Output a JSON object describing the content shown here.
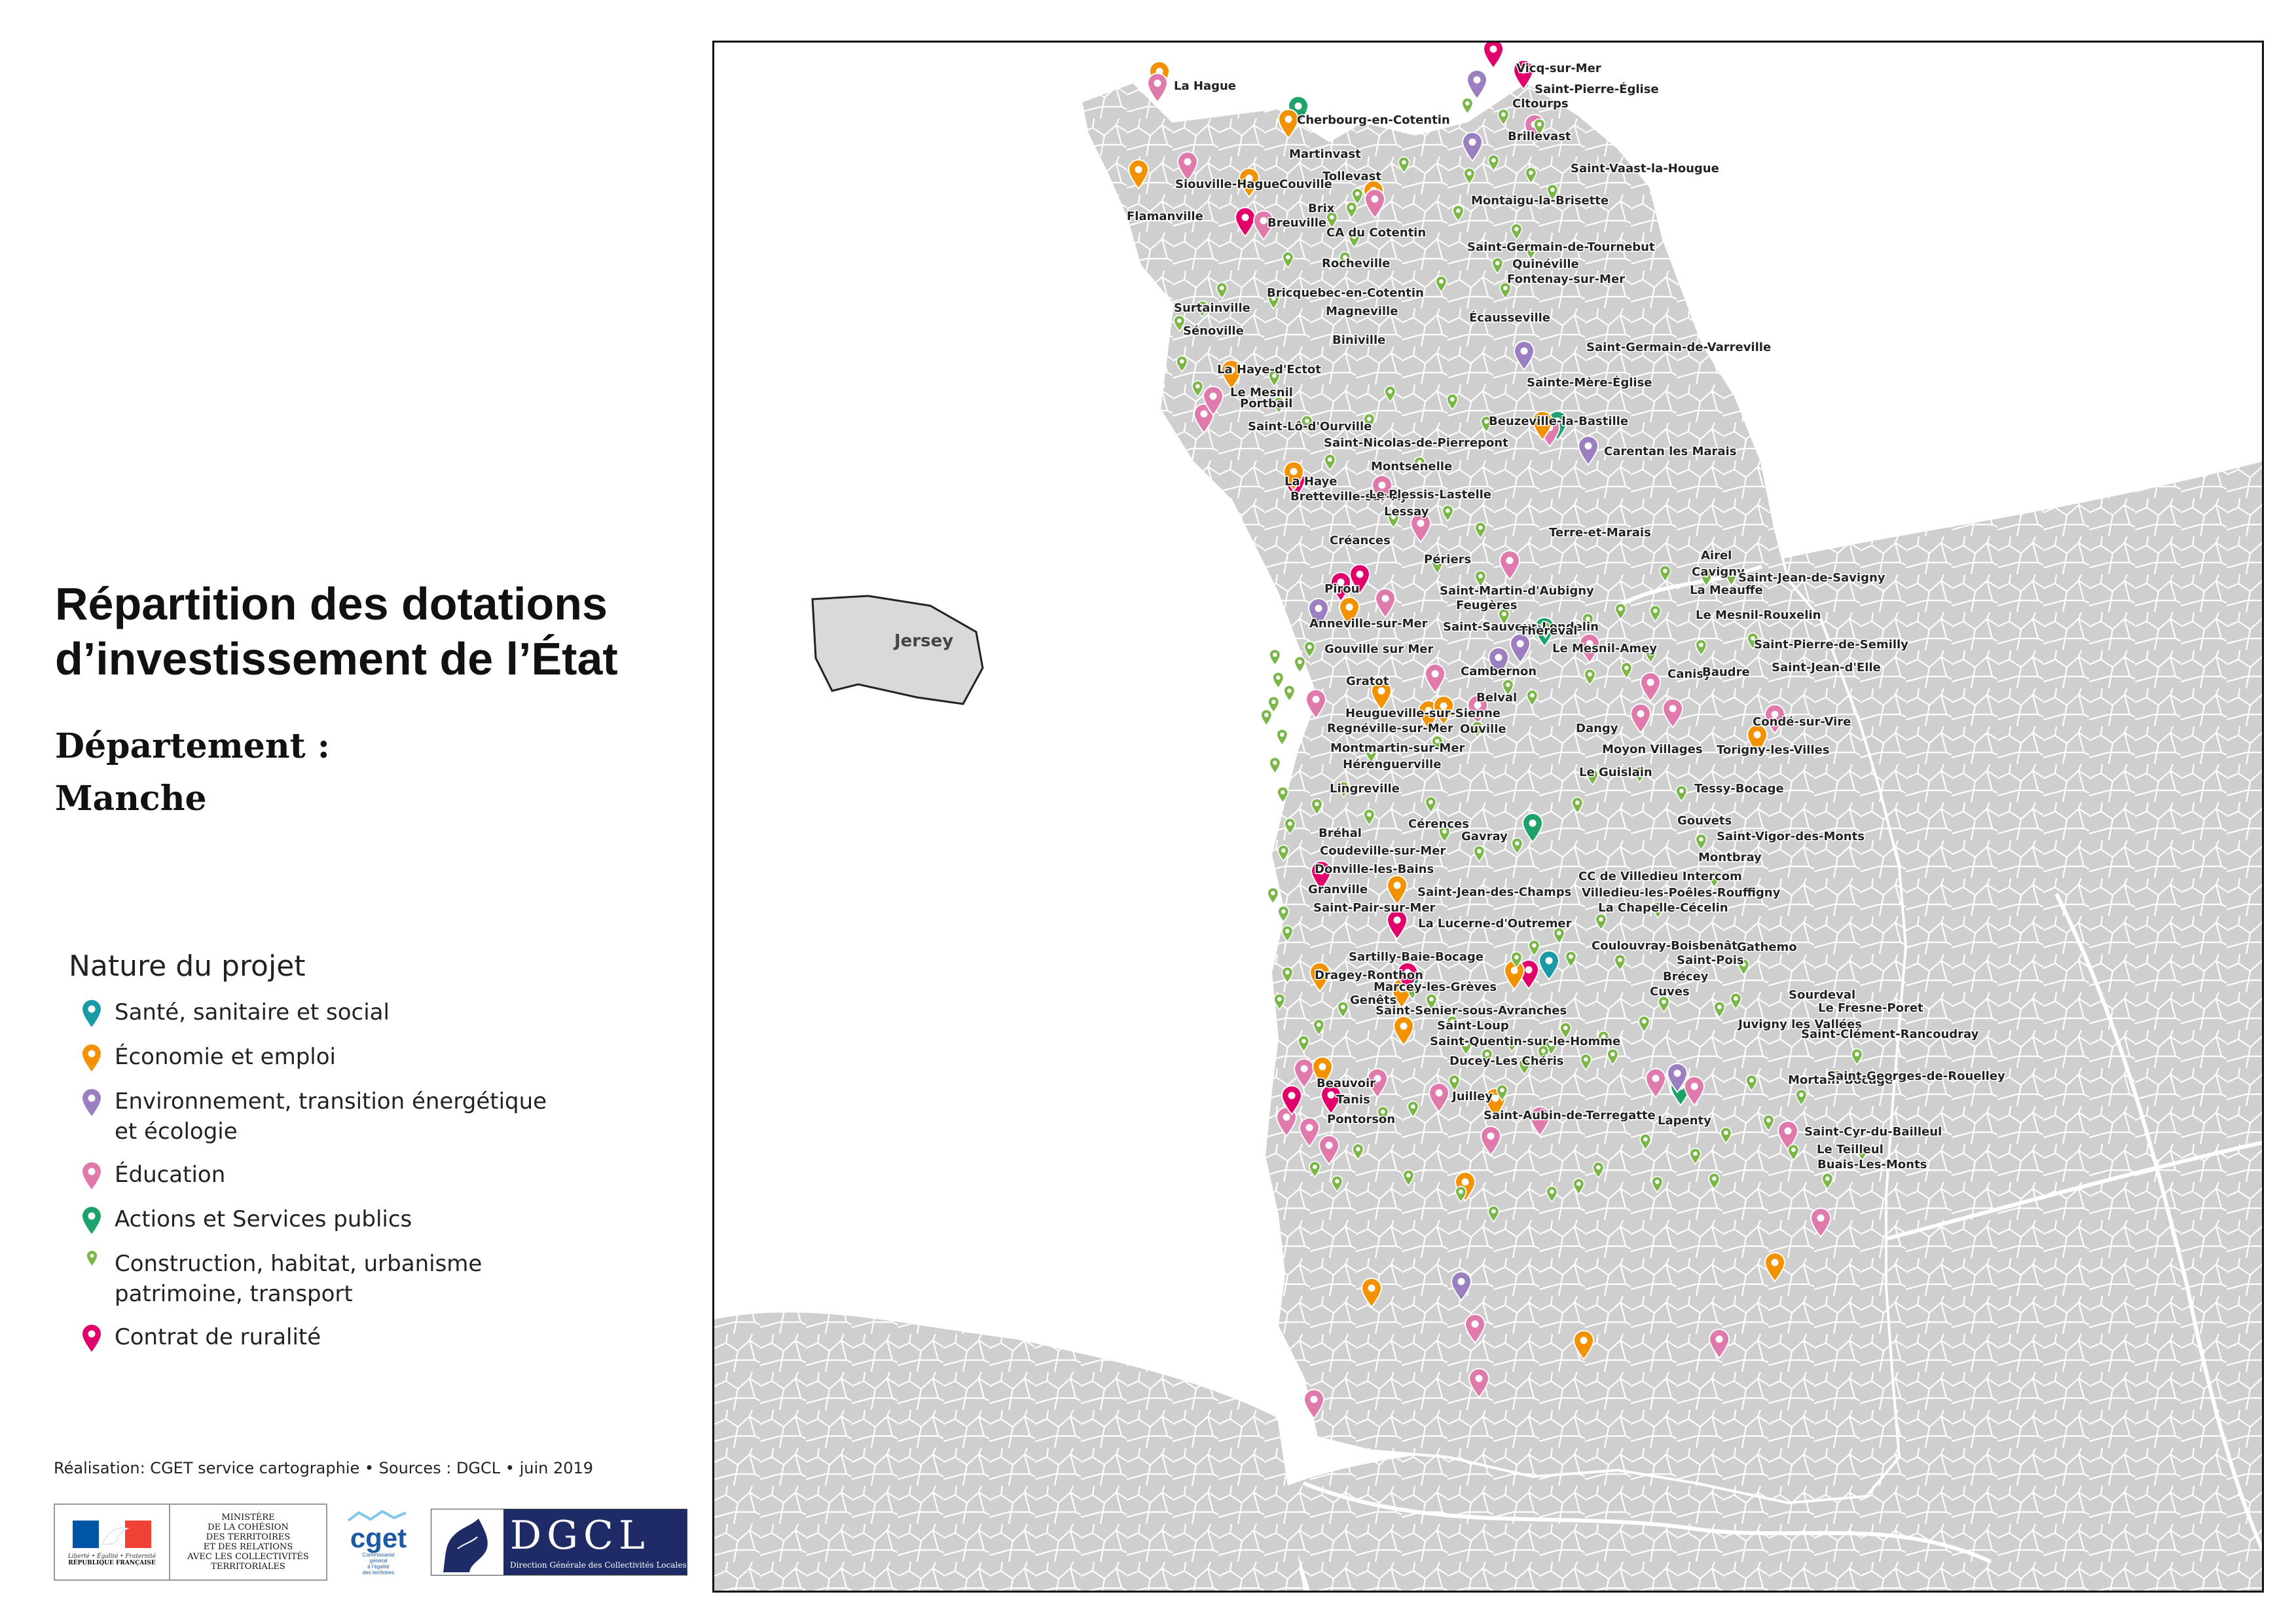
{
  "title": {
    "line1": "Répartition des dotations",
    "line2": "d’investissement de l’État"
  },
  "subtitle": {
    "label": "Département :",
    "value": "Manche"
  },
  "legend": {
    "title": "Nature du projet",
    "items": [
      {
        "line1": "Santé, sanitaire et social",
        "line2": "",
        "color": "#1a9aa6",
        "size": "large"
      },
      {
        "line1": "Économie et emploi",
        "line2": "",
        "color": "#f39200",
        "size": "large"
      },
      {
        "line1": "Environnement, transition énergétique",
        "line2": "et écologie",
        "color": "#9b7fc0",
        "size": "large"
      },
      {
        "line1": "Éducation",
        "line2": "",
        "color": "#e07aad",
        "size": "large"
      },
      {
        "line1": "Actions et Services publics",
        "line2": "",
        "color": "#1da36a",
        "size": "large"
      },
      {
        "line1": "Construction, habitat, urbanisme",
        "line2": "patrimoine, transport",
        "color": "#7ab648",
        "size": "small"
      },
      {
        "line1": "Contrat de ruralité",
        "line2": "",
        "color": "#e2006a",
        "size": "large"
      }
    ]
  },
  "credit": "Réalisation: CGET service cartographie • Sources : DGCL • juin 2019",
  "logos": {
    "marianne_caption": "Liberté • Égalité • Fraternité",
    "republique": "RÉPUBLIQUE FRANÇAISE",
    "ministere": [
      "MINISTÈRE",
      "DE LA COHÉSION",
      "DES TERRITOIRES",
      "ET DES RELATIONS",
      "AVEC LES COLLECTIVITÉS",
      "TERRITORIALES"
    ],
    "cget": "cget",
    "cget_caption": [
      "Commissariat",
      "général",
      "à l'égalité",
      "des territoires"
    ],
    "dgcl": "DGCL",
    "dgcl_caption": "Direction Générale des Collectivités Locales"
  },
  "map": {
    "island_label": "Jersey",
    "places": [
      "Vicq-sur-Mer",
      "Saint-Pierre-Église",
      "Cltourps",
      "La Hague",
      "Cherbourg-en-Cotentin",
      "Brillevast",
      "Martinvast",
      "Saint-Vaast-la-Hougue",
      "Tollevast",
      "Siouville-Hague",
      "Couville",
      "Montaigu-la-Brisette",
      "Brix",
      "Flamanville",
      "Breuville",
      "CA du Cotentin",
      "Saint-Germain-de-Tournebut",
      "Rocheville",
      "Quinéville",
      "Fontenay-sur-Mer",
      "Bricquebec-en-Cotentin",
      "Surtainville",
      "Magneville",
      "Écausseville",
      "Sénoville",
      "Biniville",
      "Saint-Germain-de-Varreville",
      "La Haye-d'Ectot",
      "Sainte-Mère-Église",
      "Le Mesnil",
      "Portbail",
      "Beuzeville-la-Bastille",
      "Saint-Lô-d'Ourville",
      "Saint-Nicolas-de-Pierrepont",
      "Carentan les Marais",
      "Montsenelle",
      "La Haye",
      "Bretteville-sur-Ay",
      "Le Plessis-Lastelle",
      "Lessay",
      "Terre-et-Marais",
      "Créances",
      "Airel",
      "Périers",
      "Cavigny",
      "Saint-Jean-de-Savigny",
      "Pirou",
      "Saint-Martin-d'Aubigny",
      "La Meauffe",
      "Feugères",
      "Le Mesnil-Rouxelin",
      "Anneville-sur-Mer",
      "Saint-Sauveur-Lendelin",
      "Thèreval",
      "Saint-Pierre-de-Semilly",
      "Gouville sur Mer",
      "Le Mesnil-Amey",
      "Cambernon",
      "Canisy",
      "Baudre",
      "Saint-Jean-d'Elle",
      "Gratot",
      "Belval",
      "Heugueville-sur-Sienne",
      "Condé-sur-Vire",
      "Regnéville-sur-Mer",
      "Ouville",
      "Dangy",
      "Montmartin-sur-Mer",
      "Moyon Villages",
      "Torigny-les-Villes",
      "Hérenguerville",
      "Le Guislain",
      "Lingreville",
      "Tessy-Bocage",
      "Gouvets",
      "Cérences",
      "Bréhal",
      "Gavray",
      "Saint-Vigor-des-Monts",
      "Coudeville-sur-Mer",
      "Montbray",
      "Donville-les-Bains",
      "CC de Villedieu Intercom",
      "Granville",
      "Saint-Jean-des-Champs",
      "Villedieu-les-Poêles-Rouffigny",
      "Saint-Pair-sur-Mer",
      "La Chapelle-Cécelin",
      "La Lucerne-d'Outremer",
      "Coulouvray-Boisbenâtre",
      "Gathemo",
      "Sartilly-Baie-Bocage",
      "Saint-Pois",
      "Dragey-Ronthon",
      "Brécey",
      "Cuves",
      "Sourdeval",
      "Marcey-les-Grèves",
      "Genêts",
      "Le Fresne-Poret",
      "Saint-Senier-sous-Avranches",
      "Saint-Loup",
      "Juvigny les Vallées",
      "Saint-Clément-Rancoudray",
      "Saint-Quentin-sur-le-Homme",
      "Ducey-Les Chéris",
      "Beauvoir",
      "Mortain-Bocage",
      "Saint-Georges-de-Rouelley",
      "Juilley",
      "Tanis",
      "Saint-Aubin-de-Terregatte",
      "Pontorson",
      "Lapenty",
      "Saint-Cyr-du-Bailleul",
      "Le Teilleul",
      "Buais-Les-Monts"
    ]
  }
}
